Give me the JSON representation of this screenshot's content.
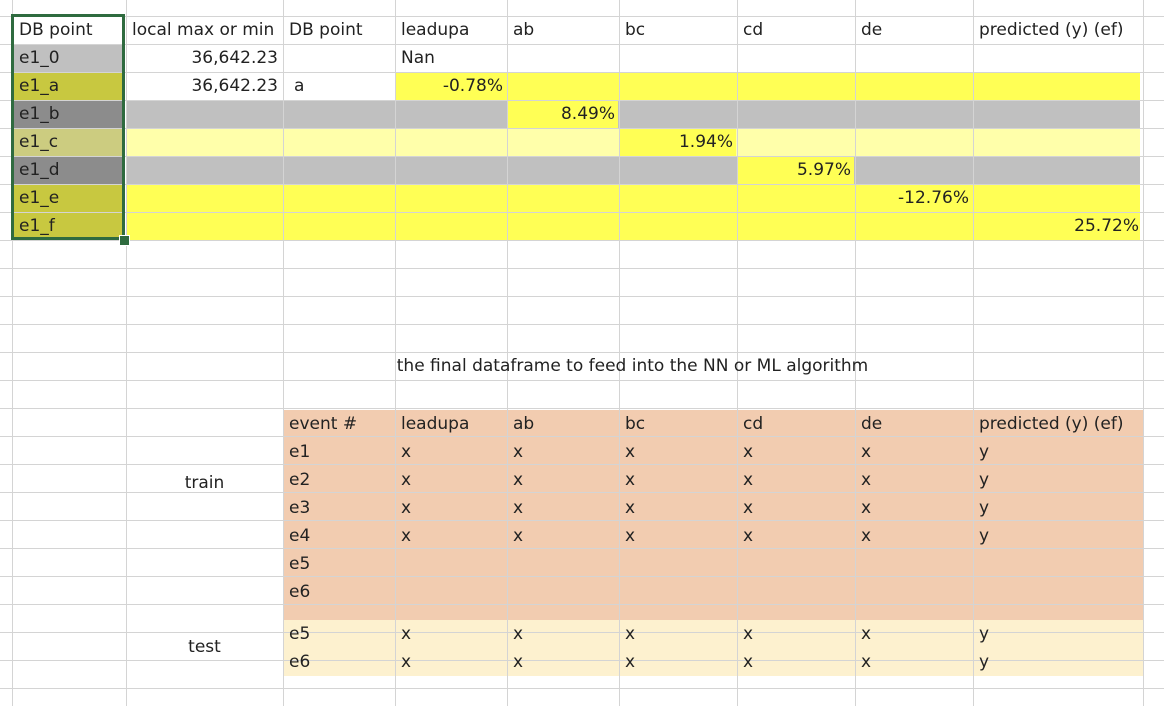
{
  "colors": {
    "grid": "#d4d4d4",
    "yellow": "#ffff55",
    "gray": "#c0c0c0",
    "light_yellow": "#ffffaa",
    "olive": "#c8c840",
    "dark_gray": "#8c8c8c",
    "light_olive": "#cccc80",
    "peach": "#f2ccb0",
    "cream": "#fdf1cf",
    "selection": "#2f6b3f"
  },
  "top_table": {
    "headers": [
      "DB point",
      "local max or min",
      "DB point",
      "leadupa",
      "ab",
      "bc",
      "cd",
      "de",
      "predicted (y) (ef)"
    ],
    "rows": [
      {
        "label": "e1_0",
        "local": "36,642.23",
        "db": "",
        "leadupa": "Nan"
      },
      {
        "label": "e1_a",
        "local": "36,642.23",
        "db": "a",
        "value": "-0.78%"
      },
      {
        "label": "e1_b",
        "value": "8.49%"
      },
      {
        "label": "e1_c",
        "value": "1.94%"
      },
      {
        "label": "e1_d",
        "value": "5.97%"
      },
      {
        "label": "e1_e",
        "value": "-12.76%"
      },
      {
        "label": "e1_f",
        "value": "25.72%"
      }
    ]
  },
  "caption": "the final dataframe to feed into the NN or ML algorithm",
  "bottom_table": {
    "headers": [
      "event #",
      "leadupa",
      "ab",
      "bc",
      "cd",
      "de",
      "predicted (y) (ef)"
    ],
    "train_label": "train",
    "test_label": "test",
    "rows": [
      {
        "event": "e1",
        "x": "x",
        "y": "y"
      },
      {
        "event": "e2",
        "x": "x",
        "y": "y"
      },
      {
        "event": "e3",
        "x": "x",
        "y": "y"
      },
      {
        "event": "e4",
        "x": "x",
        "y": "y"
      },
      {
        "event": "e5",
        "x": "",
        "y": ""
      },
      {
        "event": "e6",
        "x": "",
        "y": ""
      },
      {
        "event": "e5",
        "x": "x",
        "y": "y"
      },
      {
        "event": "e6",
        "x": "x",
        "y": "y"
      }
    ]
  }
}
